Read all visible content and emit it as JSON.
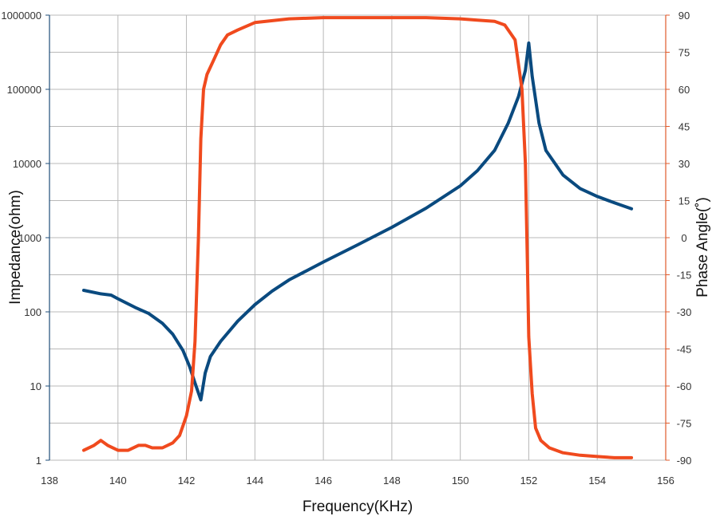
{
  "chart_data": {
    "type": "line",
    "xlabel": "Frequency(KHz)",
    "ylabel_left": "Impedance(ohm)",
    "ylabel_right": "Phase Angle(˚)",
    "x_ticks": [
      "138",
      "140",
      "142",
      "144",
      "146",
      "148",
      "150",
      "152",
      "154",
      "156"
    ],
    "y_left_ticks": [
      "1",
      "10",
      "100",
      "1000",
      "10000",
      "100000",
      "1000000"
    ],
    "y_right_ticks": [
      "-90",
      "-75",
      "-60",
      "-45",
      "-30",
      "-15",
      "0",
      "15",
      "30",
      "45",
      "60",
      "75",
      "90"
    ],
    "xlim": [
      138,
      156
    ],
    "ylim_left": [
      1,
      1000000
    ],
    "y_left_scale": "log",
    "ylim_right": [
      -90,
      90
    ],
    "grid": true,
    "colors": {
      "impedance": "#0a4a7f",
      "phase": "#f04a1e",
      "grid": "#b8b8b8",
      "left_axis": "#1f4e79",
      "right_axis": "#e05a2b"
    },
    "series": [
      {
        "key": "impedance",
        "axis": "left",
        "x": [
          139.0,
          139.5,
          139.8,
          140.0,
          140.5,
          140.9,
          141.3,
          141.6,
          141.9,
          142.1,
          142.25,
          142.42,
          142.55,
          142.7,
          143.0,
          143.5,
          144.0,
          144.5,
          145.0,
          146.0,
          147.0,
          148.0,
          149.0,
          150.0,
          150.5,
          151.0,
          151.4,
          151.7,
          151.9,
          152.0,
          152.1,
          152.3,
          152.5,
          153.0,
          153.5,
          154.0,
          154.5,
          155.0
        ],
        "y": [
          195,
          175,
          168,
          150,
          115,
          95,
          70,
          50,
          30,
          18,
          11,
          6.5,
          15,
          25,
          40,
          75,
          125,
          190,
          270,
          470,
          800,
          1380,
          2500,
          5000,
          8000,
          15000,
          35000,
          80000,
          180000,
          420000,
          150000,
          35000,
          15000,
          7000,
          4600,
          3600,
          2950,
          2450
        ]
      },
      {
        "key": "phase",
        "axis": "right",
        "x": [
          139.0,
          139.3,
          139.5,
          139.7,
          140.0,
          140.3,
          140.6,
          140.8,
          141.0,
          141.3,
          141.6,
          141.8,
          142.0,
          142.15,
          142.25,
          142.35,
          142.42,
          142.5,
          142.6,
          142.8,
          143.0,
          143.2,
          143.5,
          144.0,
          145.0,
          146.0,
          147.0,
          148.0,
          149.0,
          150.0,
          150.5,
          151.0,
          151.3,
          151.6,
          151.8,
          151.9,
          151.96,
          152.0,
          152.1,
          152.2,
          152.35,
          152.6,
          153.0,
          153.5,
          154.0,
          154.5,
          155.0
        ],
        "y": [
          -86,
          -84,
          -82,
          -84,
          -86,
          -86,
          -84,
          -84,
          -85,
          -85,
          -83,
          -80,
          -72,
          -62,
          -42,
          0,
          40,
          60,
          66,
          72,
          78,
          82,
          84,
          87,
          88.5,
          89,
          89,
          89,
          89,
          88.5,
          88,
          87.5,
          86,
          80,
          60,
          30,
          -10,
          -40,
          -63,
          -77,
          -82,
          -85,
          -87,
          -88,
          -88.5,
          -89,
          -89
        ]
      }
    ]
  }
}
